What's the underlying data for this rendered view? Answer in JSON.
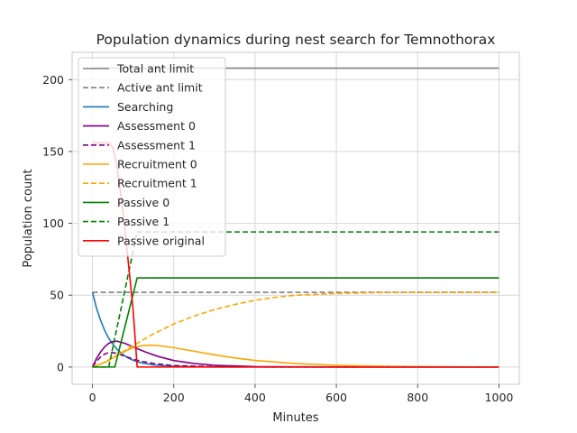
{
  "chart_data": {
    "type": "line",
    "title": "Population dynamics during nest search for Temnothorax",
    "xlabel": "Minutes",
    "ylabel": "Population count",
    "xlim": [
      -50,
      1050
    ],
    "ylim": [
      -12,
      219
    ],
    "xticks": [
      0,
      200,
      400,
      600,
      800,
      1000
    ],
    "yticks": [
      0,
      50,
      100,
      150,
      200
    ],
    "grid": true,
    "legend_position": "upper-left",
    "series": [
      {
        "name": "Total ant limit",
        "color": "#808080",
        "dash": "solid",
        "x": [
          0,
          1000
        ],
        "y": [
          208,
          208
        ]
      },
      {
        "name": "Active ant limit",
        "color": "#808080",
        "dash": "dashed",
        "x": [
          0,
          1000
        ],
        "y": [
          52,
          52
        ]
      },
      {
        "name": "Searching",
        "color": "#1f77b4",
        "dash": "solid",
        "x": [
          0,
          10,
          20,
          30,
          40,
          50,
          60,
          70,
          80,
          90,
          100,
          110,
          120,
          150,
          200,
          300,
          500,
          1000
        ],
        "y": [
          52,
          41,
          32.5,
          25.5,
          20,
          16,
          12.5,
          9.8,
          7.7,
          6,
          4.7,
          3.7,
          2.9,
          1.5,
          0.5,
          0,
          0,
          0
        ]
      },
      {
        "name": "Assessment 0",
        "color": "#800080",
        "dash": "solid",
        "x": [
          0,
          10,
          20,
          30,
          40,
          50,
          60,
          80,
          100,
          130,
          160,
          200,
          250,
          300,
          400,
          500,
          700,
          1000
        ],
        "y": [
          0,
          6,
          10.5,
          14,
          16.5,
          17.8,
          18,
          16.5,
          14,
          10.5,
          7.5,
          4.5,
          2.5,
          1.2,
          0.3,
          0.1,
          0,
          0
        ]
      },
      {
        "name": "Assessment 1",
        "color": "#800080",
        "dash": "dashed",
        "x": [
          0,
          10,
          20,
          30,
          40,
          50,
          60,
          80,
          100,
          120,
          150,
          200,
          300,
          500,
          1000
        ],
        "y": [
          0,
          4,
          7,
          9,
          10,
          10,
          9.5,
          7.5,
          5.5,
          4,
          2.5,
          1,
          0.2,
          0,
          0
        ]
      },
      {
        "name": "Recruitment 0",
        "color": "#ffa500",
        "dash": "solid",
        "x": [
          0,
          20,
          40,
          60,
          80,
          100,
          120,
          140,
          160,
          200,
          250,
          300,
          350,
          400,
          500,
          600,
          700,
          800,
          1000
        ],
        "y": [
          0,
          2,
          4.5,
          8,
          11,
          13.5,
          14.8,
          15.2,
          15,
          13.5,
          11,
          8.5,
          6.3,
          4.6,
          2.4,
          1.2,
          0.6,
          0.3,
          0
        ]
      },
      {
        "name": "Recruitment 1",
        "color": "#ffa500",
        "dash": "dashed",
        "x": [
          0,
          20,
          40,
          60,
          80,
          100,
          150,
          200,
          250,
          300,
          350,
          400,
          450,
          500,
          600,
          700,
          800,
          1000
        ],
        "y": [
          0,
          2,
          5,
          8,
          11.5,
          15,
          23,
          30,
          35.5,
          40,
          43.5,
          46.5,
          48.5,
          50,
          51.2,
          51.8,
          52,
          52
        ]
      },
      {
        "name": "Passive 0",
        "color": "#008000",
        "dash": "solid",
        "x": [
          0,
          55,
          110,
          1000
        ],
        "y": [
          0,
          0,
          62,
          62
        ]
      },
      {
        "name": "Passive 1",
        "color": "#008000",
        "dash": "dashed",
        "x": [
          0,
          40,
          110,
          1000
        ],
        "y": [
          0,
          0,
          94,
          94
        ]
      },
      {
        "name": "Passive original",
        "color": "#ff0000",
        "dash": "solid",
        "x": [
          0,
          40,
          50,
          60,
          70,
          80,
          90,
          100,
          110,
          1000
        ],
        "y": [
          156,
          156,
          153,
          140,
          120,
          95,
          68,
          40,
          0,
          0
        ]
      }
    ]
  }
}
